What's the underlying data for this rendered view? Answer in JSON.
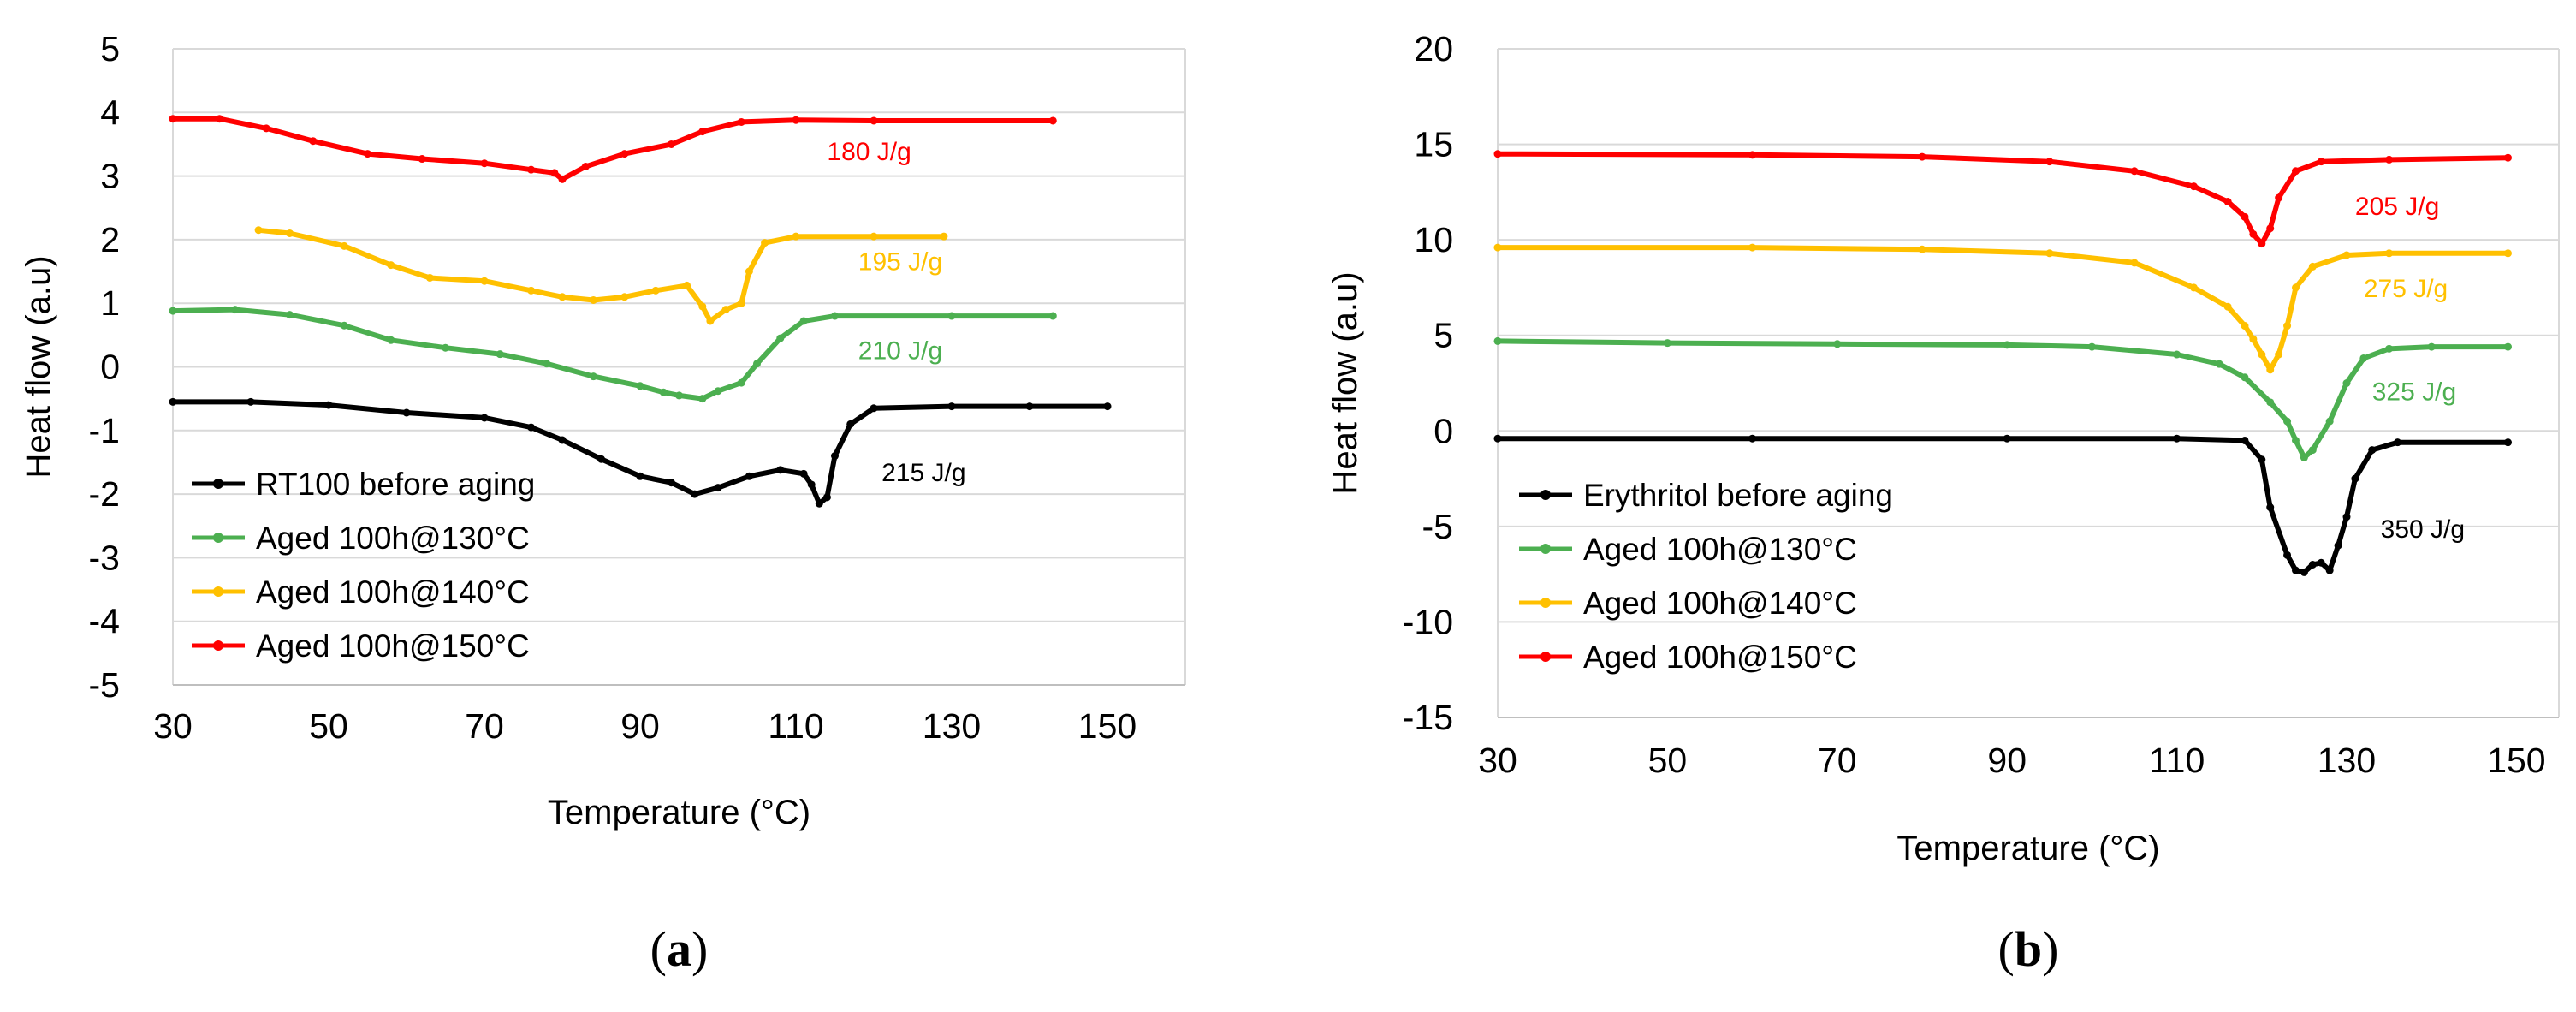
{
  "chart_data": [
    {
      "type": "line",
      "panel_label_open": "(",
      "panel_label_letter": "a",
      "panel_label_close": ")",
      "xlabel": "Temperature (°C)",
      "ylabel": "Heat flow (a.u)",
      "xlim": [
        30,
        160
      ],
      "ylim": [
        -5,
        5
      ],
      "x_ticks": [
        30,
        50,
        70,
        90,
        110,
        130,
        150
      ],
      "y_ticks": [
        5,
        4,
        3,
        2,
        1,
        0,
        -1,
        -2,
        -3,
        -4,
        -5
      ],
      "legend_position": "bottom-left",
      "series": [
        {
          "name": "RT100 before aging",
          "color": "#000000",
          "points": [
            [
              30,
              -0.55
            ],
            [
              40,
              -0.55
            ],
            [
              50,
              -0.6
            ],
            [
              60,
              -0.72
            ],
            [
              70,
              -0.8
            ],
            [
              76,
              -0.95
            ],
            [
              80,
              -1.15
            ],
            [
              85,
              -1.45
            ],
            [
              90,
              -1.72
            ],
            [
              94,
              -1.82
            ],
            [
              97,
              -2.0
            ],
            [
              100,
              -1.9
            ],
            [
              104,
              -1.72
            ],
            [
              108,
              -1.62
            ],
            [
              111,
              -1.68
            ],
            [
              112,
              -1.85
            ],
            [
              113,
              -2.15
            ],
            [
              114,
              -2.05
            ],
            [
              115,
              -1.4
            ],
            [
              117,
              -0.9
            ],
            [
              120,
              -0.65
            ],
            [
              130,
              -0.62
            ],
            [
              140,
              -0.62
            ],
            [
              150,
              -0.62
            ]
          ]
        },
        {
          "name": "Aged 100h@130°C",
          "color": "#4caf50",
          "points": [
            [
              30,
              0.88
            ],
            [
              38,
              0.9
            ],
            [
              45,
              0.82
            ],
            [
              52,
              0.65
            ],
            [
              58,
              0.42
            ],
            [
              65,
              0.3
            ],
            [
              72,
              0.2
            ],
            [
              78,
              0.05
            ],
            [
              84,
              -0.15
            ],
            [
              90,
              -0.3
            ],
            [
              93,
              -0.4
            ],
            [
              95,
              -0.45
            ],
            [
              98,
              -0.5
            ],
            [
              100,
              -0.38
            ],
            [
              103,
              -0.25
            ],
            [
              105,
              0.05
            ],
            [
              108,
              0.45
            ],
            [
              111,
              0.72
            ],
            [
              115,
              0.8
            ],
            [
              130,
              0.8
            ],
            [
              143,
              0.8
            ]
          ]
        },
        {
          "name": "Aged 100h@140°C",
          "color": "#ffc000",
          "points": [
            [
              41,
              2.15
            ],
            [
              45,
              2.1
            ],
            [
              52,
              1.9
            ],
            [
              58,
              1.6
            ],
            [
              63,
              1.4
            ],
            [
              70,
              1.35
            ],
            [
              76,
              1.2
            ],
            [
              80,
              1.1
            ],
            [
              84,
              1.05
            ],
            [
              88,
              1.1
            ],
            [
              92,
              1.2
            ],
            [
              96,
              1.28
            ],
            [
              98,
              0.95
            ],
            [
              99,
              0.72
            ],
            [
              101,
              0.9
            ],
            [
              103,
              1.0
            ],
            [
              104,
              1.5
            ],
            [
              106,
              1.95
            ],
            [
              110,
              2.05
            ],
            [
              120,
              2.05
            ],
            [
              129,
              2.05
            ]
          ]
        },
        {
          "name": "Aged 100h@150°C",
          "color": "#ff0000",
          "points": [
            [
              30,
              3.9
            ],
            [
              36,
              3.9
            ],
            [
              42,
              3.75
            ],
            [
              48,
              3.55
            ],
            [
              55,
              3.35
            ],
            [
              62,
              3.27
            ],
            [
              70,
              3.2
            ],
            [
              76,
              3.1
            ],
            [
              79,
              3.05
            ],
            [
              80,
              2.95
            ],
            [
              83,
              3.15
            ],
            [
              88,
              3.35
            ],
            [
              94,
              3.5
            ],
            [
              98,
              3.7
            ],
            [
              103,
              3.85
            ],
            [
              110,
              3.88
            ],
            [
              120,
              3.87
            ],
            [
              143,
              3.87
            ]
          ]
        }
      ],
      "annotations": [
        {
          "text": "215 J/g",
          "x": 121,
          "y": -1.8,
          "color": "#000000"
        },
        {
          "text": "210 J/g",
          "x": 118,
          "y": 0.12,
          "color": "#4caf50"
        },
        {
          "text": "195 J/g",
          "x": 118,
          "y": 1.52,
          "color": "#ffc000"
        },
        {
          "text": "180 J/g",
          "x": 114,
          "y": 3.25,
          "color": "#ff0000"
        }
      ]
    },
    {
      "type": "line",
      "panel_label_open": "(",
      "panel_label_letter": "b",
      "panel_label_close": ")",
      "xlabel": "Temperature (°C)",
      "ylabel": "Heat flow (a.u)",
      "xlim": [
        30,
        155
      ],
      "ylim": [
        -15,
        20
      ],
      "x_ticks": [
        30,
        50,
        70,
        90,
        110,
        130,
        150
      ],
      "y_ticks": [
        20,
        15,
        10,
        5,
        0,
        -5,
        -10,
        -15
      ],
      "legend_position": "bottom-left",
      "series": [
        {
          "name": "Erythritol before aging",
          "color": "#000000",
          "points": [
            [
              30,
              -0.4
            ],
            [
              60,
              -0.4
            ],
            [
              90,
              -0.4
            ],
            [
              110,
              -0.4
            ],
            [
              118,
              -0.5
            ],
            [
              120,
              -1.5
            ],
            [
              121,
              -4.0
            ],
            [
              123,
              -6.5
            ],
            [
              124,
              -7.3
            ],
            [
              125,
              -7.4
            ],
            [
              126,
              -7.0
            ],
            [
              127,
              -6.9
            ],
            [
              128,
              -7.3
            ],
            [
              129,
              -6.0
            ],
            [
              130,
              -4.5
            ],
            [
              131,
              -2.5
            ],
            [
              133,
              -1.0
            ],
            [
              136,
              -0.6
            ],
            [
              149,
              -0.6
            ]
          ]
        },
        {
          "name": "Aged 100h@130°C",
          "color": "#4caf50",
          "points": [
            [
              30,
              4.7
            ],
            [
              50,
              4.6
            ],
            [
              70,
              4.55
            ],
            [
              90,
              4.5
            ],
            [
              100,
              4.4
            ],
            [
              110,
              4.0
            ],
            [
              115,
              3.5
            ],
            [
              118,
              2.8
            ],
            [
              121,
              1.5
            ],
            [
              123,
              0.5
            ],
            [
              124,
              -0.5
            ],
            [
              125,
              -1.4
            ],
            [
              126,
              -1.0
            ],
            [
              128,
              0.5
            ],
            [
              130,
              2.5
            ],
            [
              132,
              3.8
            ],
            [
              135,
              4.3
            ],
            [
              140,
              4.4
            ],
            [
              149,
              4.4
            ]
          ]
        },
        {
          "name": "Aged 100h@140°C",
          "color": "#ffc000",
          "points": [
            [
              30,
              9.6
            ],
            [
              60,
              9.6
            ],
            [
              80,
              9.5
            ],
            [
              95,
              9.3
            ],
            [
              105,
              8.8
            ],
            [
              112,
              7.5
            ],
            [
              116,
              6.5
            ],
            [
              118,
              5.5
            ],
            [
              119,
              4.8
            ],
            [
              120,
              4.0
            ],
            [
              121,
              3.2
            ],
            [
              122,
              4.0
            ],
            [
              123,
              5.5
            ],
            [
              124,
              7.5
            ],
            [
              126,
              8.6
            ],
            [
              130,
              9.2
            ],
            [
              135,
              9.3
            ],
            [
              149,
              9.3
            ]
          ]
        },
        {
          "name": "Aged 100h@150°C",
          "color": "#ff0000",
          "points": [
            [
              30,
              14.5
            ],
            [
              60,
              14.45
            ],
            [
              80,
              14.35
            ],
            [
              95,
              14.1
            ],
            [
              105,
              13.6
            ],
            [
              112,
              12.8
            ],
            [
              116,
              12.0
            ],
            [
              118,
              11.2
            ],
            [
              119,
              10.3
            ],
            [
              120,
              9.8
            ],
            [
              121,
              10.6
            ],
            [
              122,
              12.2
            ],
            [
              124,
              13.6
            ],
            [
              127,
              14.1
            ],
            [
              135,
              14.2
            ],
            [
              149,
              14.3
            ]
          ]
        }
      ],
      "annotations": [
        {
          "text": "350 J/g",
          "x": 134,
          "y": -5.6,
          "color": "#000000"
        },
        {
          "text": "325 J/g",
          "x": 133,
          "y": 1.6,
          "color": "#4caf50"
        },
        {
          "text": "275 J/g",
          "x": 132,
          "y": 7.0,
          "color": "#ffc000"
        },
        {
          "text": "205 J/g",
          "x": 131,
          "y": 11.3,
          "color": "#ff0000"
        }
      ]
    }
  ]
}
